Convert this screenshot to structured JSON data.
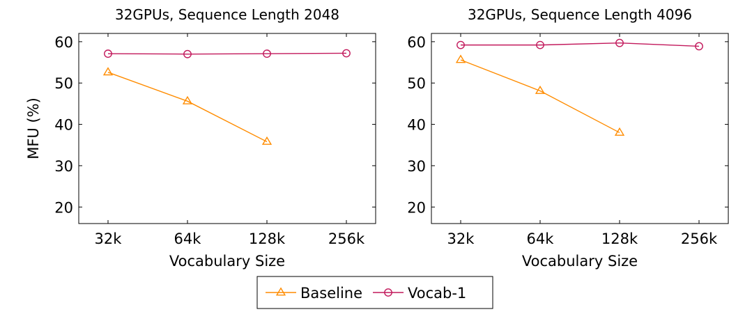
{
  "chart_data": [
    {
      "type": "line",
      "title": "32GPUs, Sequence Length 2048",
      "xlabel": "Vocabulary Size",
      "ylabel": "MFU (%)",
      "categories": [
        "32k",
        "64k",
        "128k",
        "256k"
      ],
      "ylim": [
        16,
        62
      ],
      "yticks": [
        20,
        30,
        40,
        50,
        60
      ],
      "grid": false,
      "series": [
        {
          "name": "Baseline",
          "color": "#ff8c00",
          "marker": "triangle",
          "values": [
            52.6,
            45.6,
            35.8,
            null
          ]
        },
        {
          "name": "Vocab-1",
          "color": "#c2185b",
          "marker": "circle",
          "values": [
            57.1,
            57.0,
            57.1,
            57.2
          ]
        }
      ]
    },
    {
      "type": "line",
      "title": "32GPUs, Sequence Length 4096",
      "xlabel": "Vocabulary Size",
      "ylabel": "",
      "categories": [
        "32k",
        "64k",
        "128k",
        "256k"
      ],
      "ylim": [
        16,
        62
      ],
      "yticks": [
        20,
        30,
        40,
        50,
        60
      ],
      "grid": false,
      "series": [
        {
          "name": "Baseline",
          "color": "#ff8c00",
          "marker": "triangle",
          "values": [
            55.6,
            48.1,
            38.0,
            null
          ]
        },
        {
          "name": "Vocab-1",
          "color": "#c2185b",
          "marker": "circle",
          "values": [
            59.2,
            59.2,
            59.7,
            58.9
          ]
        }
      ]
    }
  ],
  "legend": {
    "placement": "bottom-center",
    "entries": [
      {
        "label": "Baseline",
        "color": "#ff8c00",
        "marker": "triangle"
      },
      {
        "label": "Vocab-1",
        "color": "#c2185b",
        "marker": "circle"
      }
    ]
  }
}
